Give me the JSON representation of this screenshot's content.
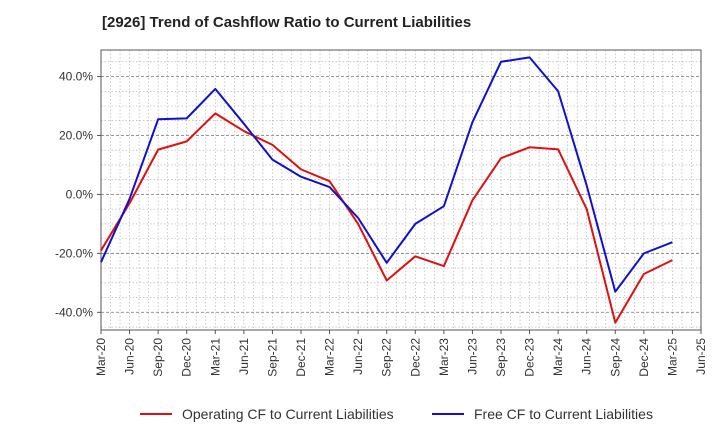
{
  "chart_data": {
    "type": "line",
    "title": "[2926]  Trend of Cashflow Ratio to Current Liabilities",
    "xlabel": "",
    "ylabel": "",
    "x": [
      "Mar-20",
      "Jun-20",
      "Sep-20",
      "Dec-20",
      "Mar-21",
      "Jun-21",
      "Sep-21",
      "Dec-21",
      "Mar-22",
      "Jun-22",
      "Sep-22",
      "Dec-22",
      "Mar-23",
      "Jun-23",
      "Sep-23",
      "Dec-23",
      "Mar-24",
      "Jun-24",
      "Sep-24",
      "Dec-24",
      "Mar-25",
      "Jun-25"
    ],
    "x_ticks": [
      "Mar-20",
      "Jun-20",
      "Sep-20",
      "Dec-20",
      "Mar-21",
      "Jun-21",
      "Sep-21",
      "Dec-21",
      "Mar-22",
      "Jun-22",
      "Sep-22",
      "Dec-22",
      "Mar-23",
      "Jun-23",
      "Sep-23",
      "Dec-23",
      "Mar-24",
      "Jun-24",
      "Sep-24",
      "Dec-24",
      "Mar-25",
      "Jun-25"
    ],
    "y_ticks": [
      -40,
      -20,
      0,
      20,
      40
    ],
    "y_tick_labels": [
      "-40.0%",
      "-20.0%",
      "0.0%",
      "20.0%",
      "40.0%"
    ],
    "ylim": [
      -46,
      49
    ],
    "grid": true,
    "legend_position": "bottom",
    "series": [
      {
        "name": "Operating CF to Current Liabilities",
        "color": "#dd1111",
        "values": [
          -19.0,
          -3.0,
          15.2,
          18.0,
          27.5,
          21.5,
          16.8,
          8.5,
          4.5,
          -10.0,
          -29.2,
          -21.0,
          -24.3,
          -2.0,
          12.3,
          16.0,
          15.3,
          -5.0,
          -43.5,
          -27.0,
          -22.3,
          null
        ]
      },
      {
        "name": "Free CF to Current Liabilities",
        "color": "#1111cc",
        "values": [
          -23.0,
          -1.5,
          25.5,
          25.8,
          35.8,
          24.0,
          11.8,
          6.0,
          2.5,
          -8.0,
          -23.2,
          -10.0,
          -4.0,
          24.5,
          45.0,
          46.5,
          35.0,
          3.0,
          -33.0,
          -20.0,
          -16.2,
          null
        ]
      }
    ]
  }
}
